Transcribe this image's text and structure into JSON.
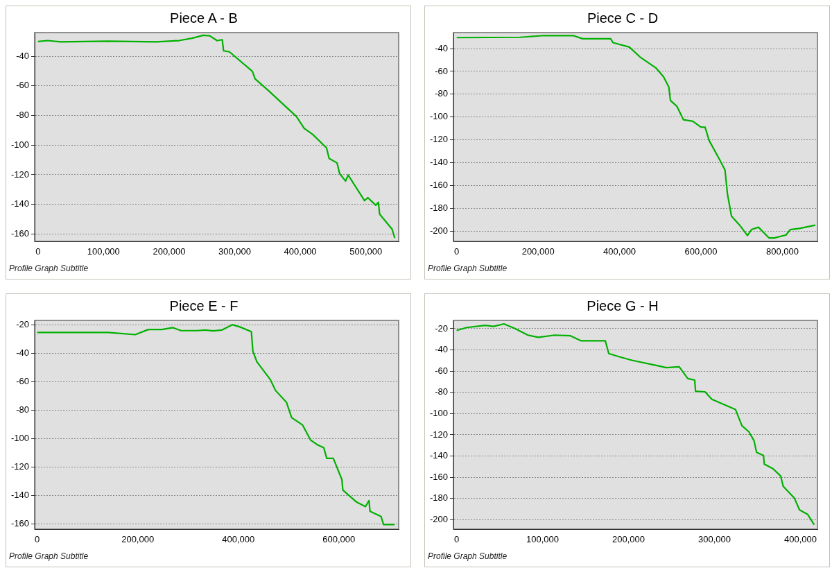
{
  "chart_data": [
    {
      "type": "line",
      "title": "Piece A - B",
      "subtitle": "Profile Graph Subtitle",
      "xlim": [
        -5000,
        550000
      ],
      "ylim": [
        -165,
        -24
      ],
      "xticks": [
        {
          "value": 0,
          "label": "0"
        },
        {
          "value": 100000,
          "label": "100,000"
        },
        {
          "value": 200000,
          "label": "200,000"
        },
        {
          "value": 300000,
          "label": "300,000"
        },
        {
          "value": 400000,
          "label": "400,000"
        },
        {
          "value": 500000,
          "label": "500,000"
        }
      ],
      "yticks": [
        -40,
        -60,
        -80,
        -100,
        -120,
        -140,
        -160
      ],
      "grid": "y",
      "legend": false,
      "marker": "none",
      "line_style": "solid",
      "series": [
        {
          "color": "#00b000",
          "x": [
            0,
            14600,
            35000,
            106000,
            181000,
            215000,
            235000,
            252000,
            262000,
            273000,
            281000,
            283000,
            292000,
            327000,
            331000,
            352000,
            394000,
            406000,
            419000,
            440000,
            444000,
            456000,
            460000,
            469000,
            473000,
            498000,
            503000,
            515000,
            519000,
            521000,
            540000,
            544000
          ],
          "values": [
            -30,
            -29.4,
            -30.3,
            -29.8,
            -30.3,
            -29.4,
            -27.8,
            -25.8,
            -26.2,
            -29.4,
            -28.8,
            -36.3,
            -37,
            -50.2,
            -55.2,
            -63.4,
            -80.6,
            -88.7,
            -92.8,
            -101.9,
            -109,
            -112,
            -119.2,
            -124.3,
            -120.2,
            -137.5,
            -135.5,
            -140.6,
            -138.6,
            -146.6,
            -156.8,
            -162.8
          ]
        }
      ]
    },
    {
      "type": "line",
      "title": "Piece C - D",
      "subtitle": "Profile Graph Subtitle",
      "xlim": [
        -8000,
        886000
      ],
      "ylim": [
        -209,
        -26
      ],
      "xticks": [
        {
          "value": 0,
          "label": "0"
        },
        {
          "value": 200000,
          "label": "200,000"
        },
        {
          "value": 400000,
          "label": "400,000"
        },
        {
          "value": 600000,
          "label": "600,000"
        },
        {
          "value": 800000,
          "label": "800,000"
        }
      ],
      "yticks": [
        -40,
        -60,
        -80,
        -100,
        -120,
        -140,
        -160,
        -180,
        -200
      ],
      "grid": "y",
      "legend": false,
      "marker": "none",
      "line_style": "solid",
      "series": [
        {
          "color": "#00b000",
          "x": [
            0,
            156000,
            215000,
            260000,
            286000,
            309000,
            378000,
            384000,
            424000,
            450000,
            489000,
            508000,
            521000,
            525000,
            541000,
            557000,
            580000,
            600000,
            610000,
            620000,
            646000,
            659000,
            665000,
            675000,
            695000,
            714000,
            724000,
            741000,
            767000,
            780000,
            809000,
            819000,
            842000,
            881000
          ],
          "values": [
            -30.4,
            -30.1,
            -28.6,
            -28.6,
            -28.6,
            -31.4,
            -31.4,
            -34.8,
            -38.7,
            -47.3,
            -56.9,
            -64.7,
            -73.8,
            -85.5,
            -90.7,
            -102.4,
            -103.7,
            -108.9,
            -108.9,
            -120.6,
            -137.6,
            -146.6,
            -167.5,
            -187,
            -194.8,
            -203.9,
            -198.7,
            -196.6,
            -206,
            -206,
            -203.4,
            -198.7,
            -197.7,
            -194.8
          ]
        }
      ]
    },
    {
      "type": "line",
      "title": "Piece E - F",
      "subtitle": "Profile Graph Subtitle",
      "xlim": [
        -5000,
        719000
      ],
      "ylim": [
        -163.6,
        -16.8
      ],
      "xticks": [
        {
          "value": 0,
          "label": "0"
        },
        {
          "value": 200000,
          "label": "200,000"
        },
        {
          "value": 400000,
          "label": "400,000"
        },
        {
          "value": 600000,
          "label": "600,000"
        }
      ],
      "yticks": [
        -20,
        -40,
        -60,
        -80,
        -100,
        -120,
        -140,
        -160
      ],
      "grid": "y",
      "legend": false,
      "marker": "none",
      "line_style": "solid",
      "series": [
        {
          "color": "#00b000",
          "x": [
            0,
            141000,
            195000,
            221000,
            248000,
            270000,
            286000,
            318000,
            334000,
            350000,
            367000,
            388000,
            404000,
            426000,
            429000,
            437000,
            464000,
            474000,
            496000,
            506000,
            528000,
            544000,
            557000,
            570000,
            576000,
            589000,
            606000,
            608000,
            635000,
            653000,
            660000,
            662000,
            684000,
            689000,
            711000
          ],
          "values": [
            -25.3,
            -25.3,
            -26.8,
            -23.2,
            -23.2,
            -21.9,
            -24,
            -24,
            -23.6,
            -24.2,
            -23.6,
            -19.8,
            -21.5,
            -24.7,
            -38.5,
            -45.9,
            -58.6,
            -66,
            -74.5,
            -85.1,
            -90.4,
            -101,
            -104.2,
            -106.3,
            -113.8,
            -113.8,
            -128.6,
            -136.1,
            -144.5,
            -147.7,
            -143.5,
            -151,
            -154.7,
            -160.4,
            -160.4
          ]
        }
      ]
    },
    {
      "type": "line",
      "title": "Piece G - H",
      "subtitle": "Profile Graph Subtitle",
      "xlim": [
        -3700,
        419800
      ],
      "ylim": [
        -208.9,
        -12.2
      ],
      "xticks": [
        {
          "value": 0,
          "label": "0"
        },
        {
          "value": 100000,
          "label": "100,000"
        },
        {
          "value": 200000,
          "label": "200,000"
        },
        {
          "value": 300000,
          "label": "300,000"
        },
        {
          "value": 400000,
          "label": "400,000"
        }
      ],
      "yticks": [
        -20,
        -40,
        -60,
        -80,
        -100,
        -120,
        -140,
        -160,
        -180,
        -200
      ],
      "grid": "y",
      "legend": false,
      "marker": "none",
      "line_style": "solid",
      "series": [
        {
          "color": "#00b000",
          "x": [
            0,
            11800,
            33000,
            43000,
            55000,
            67500,
            83000,
            95000,
            114000,
            132500,
            145000,
            173000,
            177000,
            188000,
            204000,
            235000,
            244000,
            259000,
            269000,
            277000,
            278000,
            289000,
            297000,
            324500,
            332000,
            340000,
            346000,
            349000,
            357000,
            358000,
            368000,
            377000,
            380000,
            393000,
            399000,
            408500,
            416000
          ],
          "values": [
            -21.7,
            -18.9,
            -16.9,
            -17.8,
            -15.5,
            -19.7,
            -26.1,
            -28.1,
            -26.1,
            -26.7,
            -31.4,
            -31.4,
            -43.4,
            -46.2,
            -49.8,
            -55.1,
            -56.7,
            -55.9,
            -67,
            -68.4,
            -79,
            -79.5,
            -86.5,
            -96.2,
            -111.5,
            -117.1,
            -125.5,
            -136.6,
            -139.4,
            -147.7,
            -151.9,
            -158.8,
            -168.6,
            -179.7,
            -190.8,
            -195,
            -204.7
          ]
        }
      ]
    }
  ]
}
